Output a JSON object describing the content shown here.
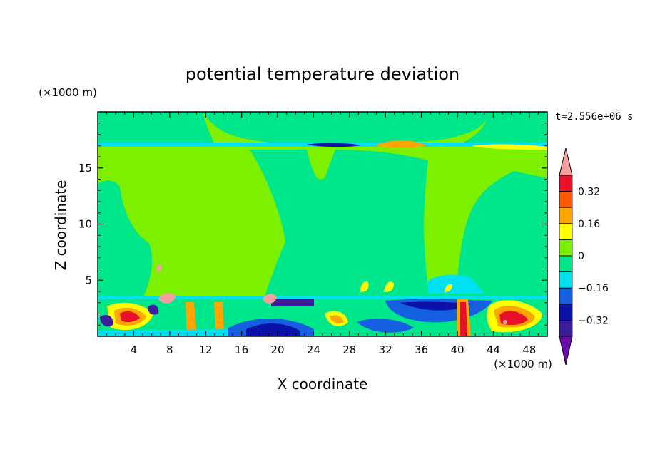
{
  "chart_data": {
    "type": "heatmap",
    "title": "potential temperature deviation",
    "xlabel": "X coordinate",
    "ylabel": "Z coordinate",
    "x_unit": "(×1000 m)",
    "y_unit": "(×1000 m)",
    "time_label": "t=2.556e+06 s",
    "xlim": [
      0,
      50
    ],
    "ylim": [
      0,
      20
    ],
    "x_ticks": [
      4,
      8,
      12,
      16,
      20,
      24,
      28,
      32,
      36,
      40,
      44,
      48
    ],
    "y_ticks": [
      5,
      10,
      15
    ],
    "colorbar": {
      "levels": [
        -0.4,
        -0.32,
        -0.24,
        -0.16,
        -0.08,
        0,
        0.08,
        0.16,
        0.24,
        0.32,
        0.4
      ],
      "tick_labels": [
        "0.32",
        "0.16",
        "0",
        "-0.16",
        "-0.32"
      ],
      "colors": [
        "#6a0dad",
        "#3b1e9e",
        "#0a12a8",
        "#1560e0",
        "#00e0f0",
        "#00e68a",
        "#7df000",
        "#ffff00",
        "#ffa500",
        "#ff5a00",
        "#e8102a",
        "#f5a0a0"
      ]
    },
    "fields": {
      "background": "#00e68a",
      "upper_band": "#7df000",
      "boundary_layer_top": 3.5
    }
  }
}
